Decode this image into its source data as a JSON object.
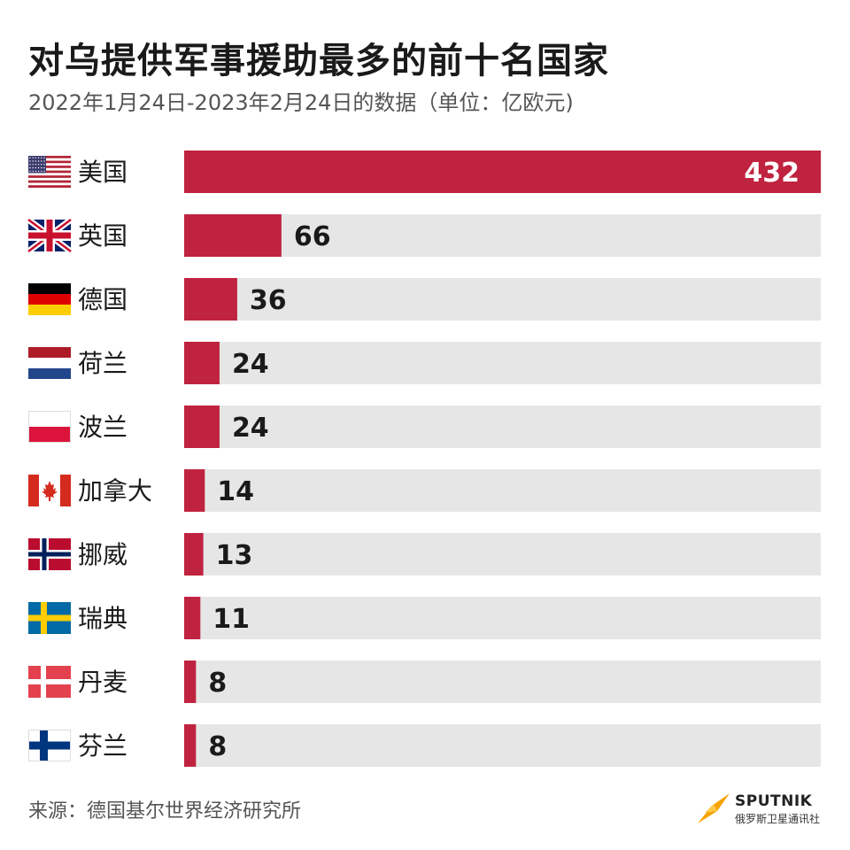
{
  "header": {
    "title": "对乌提供军事援助最多的前十名国家",
    "subtitle": "2022年1月24日-2023年2月24日的数据（单位：亿欧元)"
  },
  "footer": {
    "source": "来源：德国基尔世界经济研究所",
    "logo_name": "SPUTNIK",
    "logo_sub": "俄罗斯卫星通讯社"
  },
  "colors": {
    "bar": "#c0233f",
    "track": "#e6e6e6",
    "accent_logo": "#f5a300"
  },
  "chart_data": {
    "type": "bar",
    "orientation": "horizontal",
    "categories": [
      "美国",
      "英国",
      "德国",
      "荷兰",
      "波兰",
      "加拿大",
      "挪威",
      "瑞典",
      "丹麦",
      "芬兰"
    ],
    "values": [
      432,
      66,
      36,
      24,
      24,
      14,
      13,
      11,
      8,
      8
    ],
    "flags": [
      "flag-usa-icon",
      "flag-uk-icon",
      "flag-germany-icon",
      "flag-netherlands-icon",
      "flag-poland-icon",
      "flag-canada-icon",
      "flag-norway-icon",
      "flag-sweden-icon",
      "flag-denmark-icon",
      "flag-finland-icon"
    ],
    "xlim": [
      0,
      432
    ],
    "grid": false,
    "legend": "none"
  }
}
